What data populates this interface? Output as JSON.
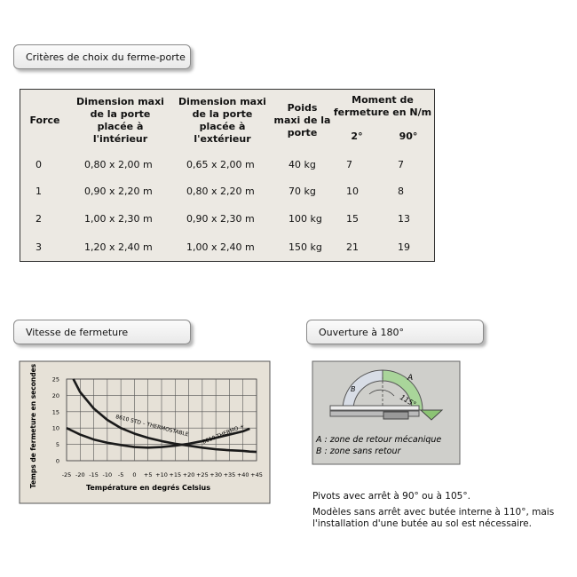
{
  "section_titles": [
    "Critères de choix du ferme-porte",
    "Vitesse de fermeture",
    "Ouverture à 180°"
  ],
  "table": {
    "header": [
      [
        "Force"
      ],
      [
        "Dimension maxi",
        "de la porte",
        "placée à l'intérieur"
      ],
      [
        "Dimension maxi",
        "de la porte",
        "placée à l'extérieur"
      ],
      [
        "Poids",
        "maxi de la",
        "porte"
      ],
      [
        "Moment de",
        "fermeture en N/m"
      ]
    ],
    "subheader": [
      "2°",
      "90°"
    ],
    "rows": [
      [
        "0",
        "0,80 x 2,00 m",
        "0,65 x 2,00 m",
        "40 kg",
        "7",
        "7"
      ],
      [
        "1",
        "0,90 x 2,20 m",
        "0,80 x 2,20 m",
        "70 kg",
        "10",
        "8"
      ],
      [
        "2",
        "1,00 x 2,30 m",
        "0,90 x 2,30 m",
        "100 kg",
        "15",
        "13"
      ],
      [
        "3",
        "1,20 x 2,40 m",
        "1,00 x 2,40 m",
        "150 kg",
        "21",
        "19"
      ]
    ]
  },
  "chart_data": {
    "type": "line",
    "xlabel": "Température en degrés Celsius",
    "ylabel": "Temps de fermeture en secondes",
    "x": [
      -25,
      -22.5,
      -20,
      -15,
      -10,
      -5,
      0,
      5,
      10,
      15,
      20,
      25,
      30,
      35,
      40,
      42.5,
      45
    ],
    "series": [
      {
        "name": "8610 STD – THERMOSTABLE",
        "color": "#1a1a1a",
        "values": [
          null,
          25,
          21,
          16,
          12.5,
          10,
          8.3,
          7,
          6,
          5.2,
          4.6,
          4,
          3.5,
          3.2,
          3,
          2.8,
          2.7
        ]
      },
      {
        "name": "8610 THERMO +",
        "color": "#1a1a1a",
        "values": [
          10,
          9,
          8,
          6.5,
          5.5,
          4.8,
          4.2,
          4,
          4.2,
          4.6,
          5.2,
          6,
          7,
          8,
          9,
          9.8,
          null
        ]
      }
    ],
    "xlim": [
      -25,
      45
    ],
    "ylim": [
      0,
      25
    ],
    "xticks": [
      -25,
      -20,
      -15,
      -10,
      -5,
      0,
      {
        "value": 5,
        "label": "+5"
      },
      {
        "value": 10,
        "label": "+10"
      },
      {
        "value": 15,
        "label": "+15"
      },
      {
        "value": 20,
        "label": "+20"
      },
      {
        "value": 25,
        "label": "+25"
      },
      {
        "value": 30,
        "label": "+30"
      },
      {
        "value": 35,
        "label": "+35"
      },
      {
        "value": 40,
        "label": "+40"
      },
      {
        "value": 45,
        "label": "+45"
      }
    ],
    "yticks": [
      0,
      5,
      10,
      15,
      20,
      25
    ],
    "grid": true
  },
  "diagram": {
    "label_a": "A",
    "label_b": "B",
    "angle": "115°",
    "legend": [
      "A : zone de retour mécanique",
      "B : zone sans retour"
    ]
  },
  "notes": [
    "Pivots avec arrêt à 90° ou à 105°.",
    "Modèles sans arrêt avec butée interne à 110°, mais l'installation d'une butée au sol est nécessaire."
  ]
}
